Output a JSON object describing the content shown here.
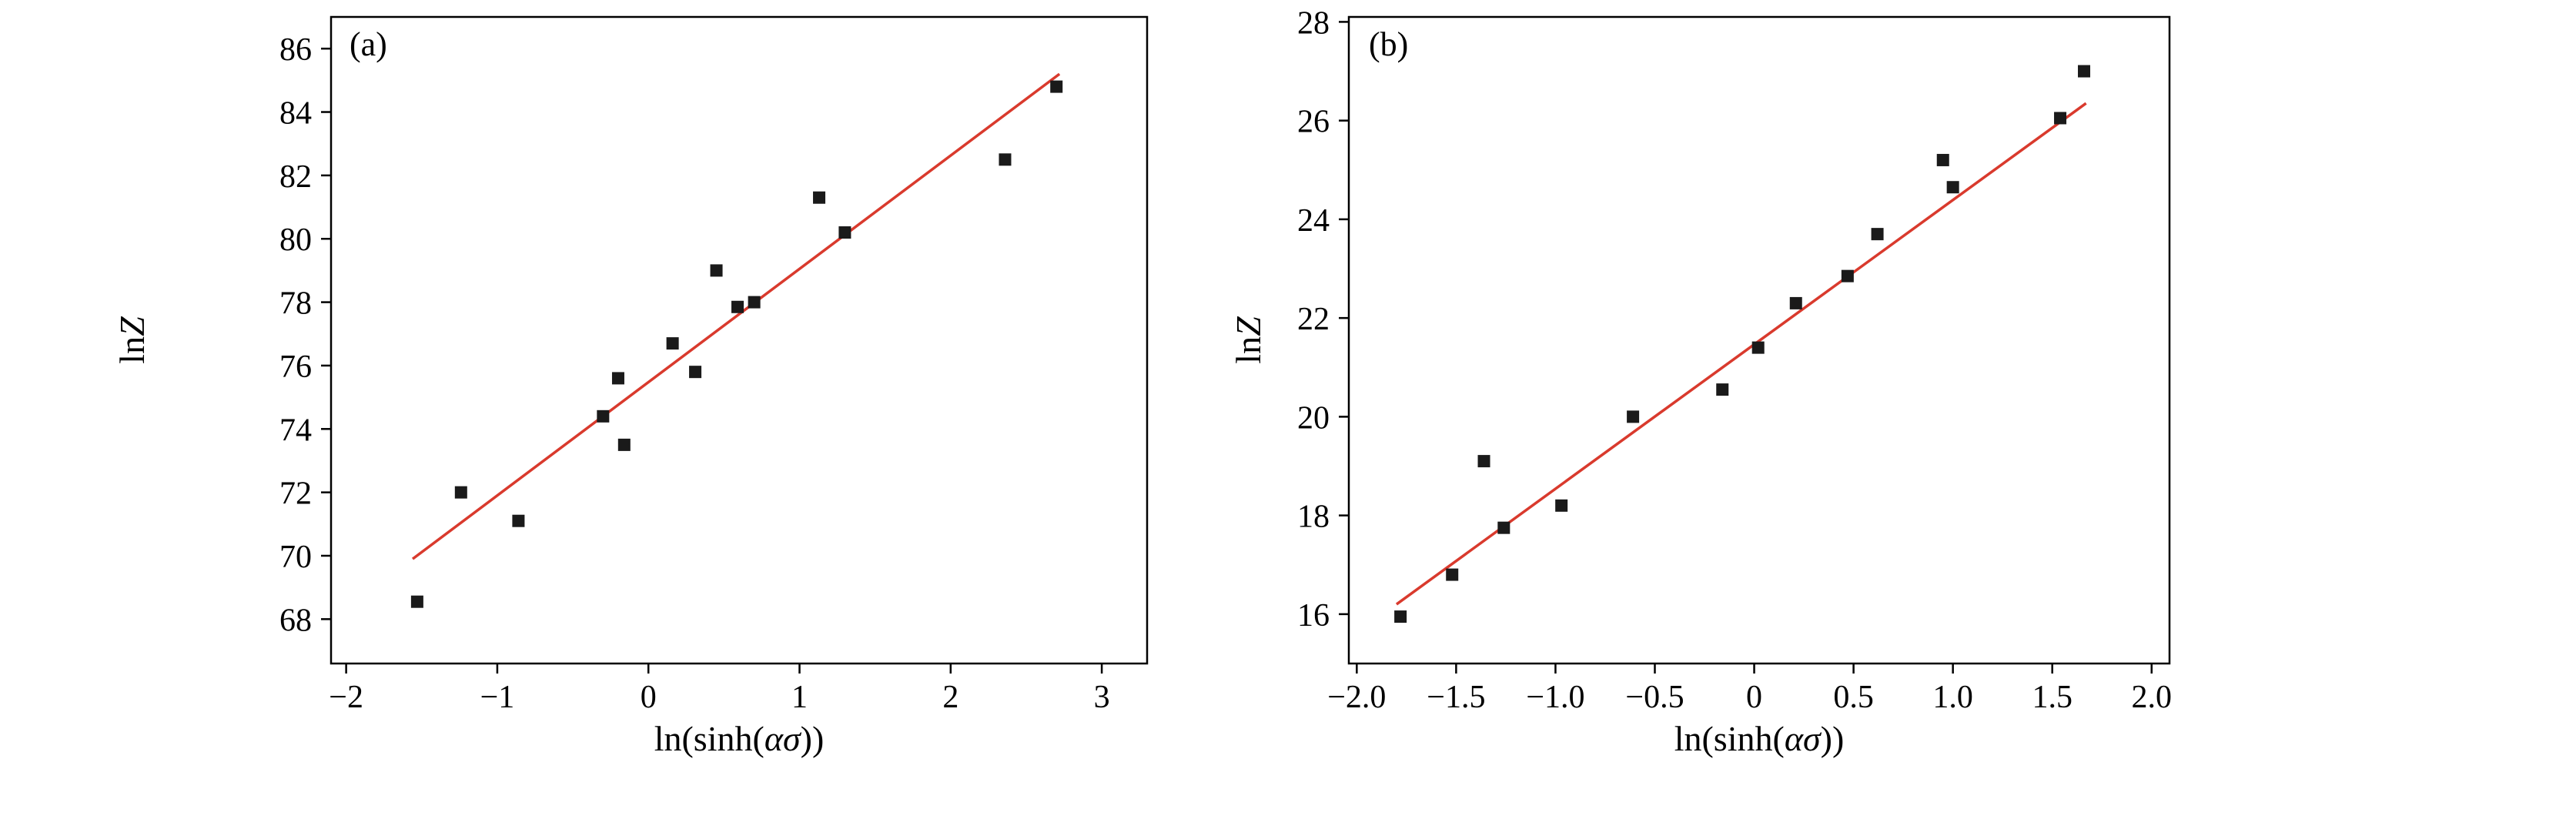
{
  "figure": {
    "background": "#ffffff",
    "text_color": "#000000"
  },
  "chart_data": [
    {
      "type": "scatter",
      "panel_label": "(a)",
      "xlabel": "ln(sinh(ασ))",
      "xlabel_parts": {
        "pre": "ln(sinh(",
        "var": "ασ",
        "post": "))"
      },
      "ylabel": "lnZ",
      "ylabel_parts": {
        "pre": "ln",
        "var": "Z"
      },
      "xlim": [
        -2.1,
        3.3
      ],
      "ylim": [
        66.6,
        87.0
      ],
      "xtick_values": [
        -2,
        -1,
        0,
        1,
        2,
        3
      ],
      "xtick_labels": [
        "−2",
        "−1",
        "0",
        "1",
        "2",
        "3"
      ],
      "ytick_values": [
        68,
        70,
        72,
        74,
        76,
        78,
        80,
        82,
        84,
        86
      ],
      "ytick_labels": [
        "68",
        "70",
        "72",
        "74",
        "76",
        "78",
        "80",
        "82",
        "84",
        "86"
      ],
      "points": [
        [
          -1.53,
          68.55
        ],
        [
          -1.24,
          72.0
        ],
        [
          -0.86,
          71.1
        ],
        [
          -0.3,
          74.4
        ],
        [
          -0.2,
          75.6
        ],
        [
          -0.16,
          73.5
        ],
        [
          0.16,
          76.7
        ],
        [
          0.31,
          75.8
        ],
        [
          0.45,
          79.0
        ],
        [
          0.59,
          77.85
        ],
        [
          0.7,
          78.0
        ],
        [
          1.13,
          81.3
        ],
        [
          1.3,
          80.2
        ],
        [
          2.36,
          82.5
        ],
        [
          2.7,
          84.8
        ]
      ],
      "fit_line": {
        "x1": -1.56,
        "y1": 69.9,
        "x2": 2.72,
        "y2": 85.2
      },
      "marker_color": "#1a1a1a",
      "line_color": "#d93a2d",
      "axis_color": "#000000",
      "legend": "none",
      "grid": "off"
    },
    {
      "type": "scatter",
      "panel_label": "(b)",
      "xlabel": "ln(sinh(ασ))",
      "xlabel_parts": {
        "pre": "ln(sinh(",
        "var": "ασ",
        "post": "))"
      },
      "ylabel": "lnZ",
      "ylabel_parts": {
        "pre": "ln",
        "var": "Z"
      },
      "xlim": [
        -2.04,
        2.09
      ],
      "ylim": [
        15.0,
        28.1
      ],
      "xtick_values": [
        -2.0,
        -1.5,
        -1.0,
        -0.5,
        0,
        0.5,
        1.0,
        1.5,
        2.0
      ],
      "xtick_labels": [
        "−2.0",
        "−1.5",
        "−1.0",
        "−0.5",
        "0",
        "0.5",
        "1.0",
        "1.5",
        "2.0"
      ],
      "ytick_values": [
        16,
        18,
        20,
        22,
        24,
        26,
        28
      ],
      "ytick_labels": [
        "16",
        "18",
        "20",
        "22",
        "24",
        "26",
        "28"
      ],
      "points": [
        [
          -1.78,
          15.95
        ],
        [
          -1.52,
          16.8
        ],
        [
          -1.36,
          19.1
        ],
        [
          -1.26,
          17.75
        ],
        [
          -0.97,
          18.2
        ],
        [
          -0.61,
          20.0
        ],
        [
          -0.16,
          20.55
        ],
        [
          0.02,
          21.4
        ],
        [
          0.21,
          22.3
        ],
        [
          0.47,
          22.85
        ],
        [
          0.62,
          23.7
        ],
        [
          0.95,
          25.2
        ],
        [
          1.0,
          24.65
        ],
        [
          1.54,
          26.05
        ],
        [
          1.66,
          27.0
        ]
      ],
      "fit_line": {
        "x1": -1.8,
        "y1": 16.2,
        "x2": 1.67,
        "y2": 26.35
      },
      "marker_color": "#1a1a1a",
      "line_color": "#d93a2d",
      "axis_color": "#000000",
      "legend": "none",
      "grid": "off"
    }
  ]
}
